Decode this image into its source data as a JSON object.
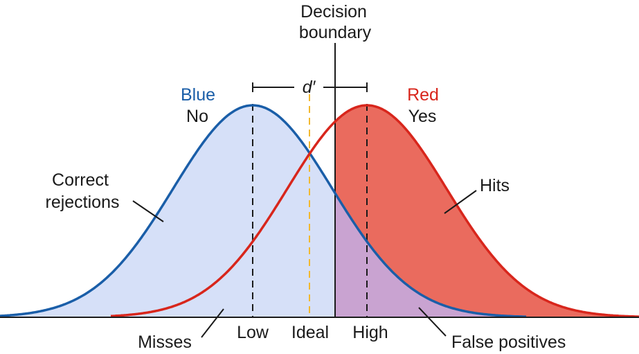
{
  "decision_boundary": {
    "line1": "Decision",
    "line2": "boundary"
  },
  "d_prime": "d′",
  "blue_curve": {
    "name": "Blue",
    "response": "No",
    "color": "#1a5ea8",
    "fill": "#d6e0f8"
  },
  "red_curve": {
    "name": "Red",
    "response": "Yes",
    "color": "#d8261c",
    "fill": "#ea6b5e"
  },
  "overlap_fill": "#c9a3d1",
  "ideal_line_color": "#f2b82e",
  "regions": {
    "correct_rejections": {
      "line1": "Correct",
      "line2": "rejections"
    },
    "hits": "Hits",
    "misses": "Misses",
    "false_positives": "False positives"
  },
  "axis_labels": {
    "low": "Low",
    "ideal": "Ideal",
    "high": "High"
  }
}
